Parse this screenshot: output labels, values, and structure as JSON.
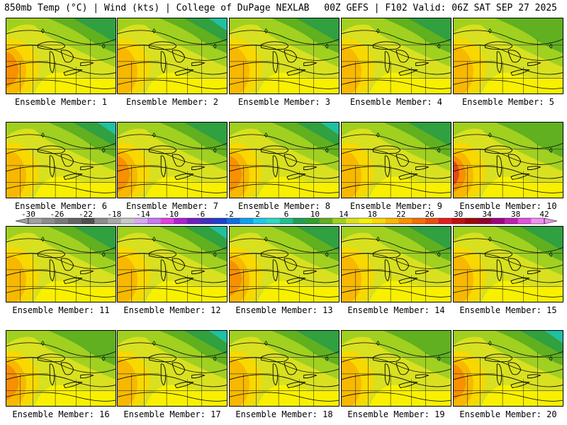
{
  "header": {
    "left": "850mb Temp (°C) | Wind (kts) | College of DuPage NEXLAB",
    "right": "00Z GEFS | F102 Valid: 06Z SAT SEP 27 2025"
  },
  "panels": [
    {
      "label": "Ensemble Member: 1"
    },
    {
      "label": "Ensemble Member: 2"
    },
    {
      "label": "Ensemble Member: 3"
    },
    {
      "label": "Ensemble Member: 4"
    },
    {
      "label": "Ensemble Member: 5"
    },
    {
      "label": "Ensemble Member: 6"
    },
    {
      "label": "Ensemble Member: 7"
    },
    {
      "label": "Ensemble Member: 8"
    },
    {
      "label": "Ensemble Member: 9"
    },
    {
      "label": "Ensemble Member: 10"
    },
    {
      "label": "Ensemble Member: 11"
    },
    {
      "label": "Ensemble Member: 12"
    },
    {
      "label": "Ensemble Member: 13"
    },
    {
      "label": "Ensemble Member: 14"
    },
    {
      "label": "Ensemble Member: 15"
    },
    {
      "label": "Ensemble Member: 16"
    },
    {
      "label": "Ensemble Member: 17"
    },
    {
      "label": "Ensemble Member: 18"
    },
    {
      "label": "Ensemble Member: 19"
    },
    {
      "label": "Ensemble Member: 20"
    }
  ],
  "colorbar": {
    "labels": [
      "-30",
      "-26",
      "-22",
      "-18",
      "-14",
      "-10",
      "-6",
      "-2",
      "2",
      "6",
      "10",
      "14",
      "18",
      "22",
      "26",
      "30",
      "34",
      "38",
      "42"
    ],
    "colors": [
      "#a0a0a0",
      "#8c8c8c",
      "#787878",
      "#646464",
      "#505050",
      "#8c8c8c",
      "#a8a8a8",
      "#c8c8c8",
      "#d8a8f0",
      "#c878f0",
      "#e040e0",
      "#b020d0",
      "#7020c0",
      "#4030c0",
      "#2040d0",
      "#1070e0",
      "#10a0f0",
      "#20c8e8",
      "#30d8c0",
      "#20c090",
      "#20a050",
      "#30a030",
      "#60b020",
      "#a0d020",
      "#d8e020",
      "#f8f000",
      "#f8d800",
      "#f8b800",
      "#f89000",
      "#f07000",
      "#e85010",
      "#e02020",
      "#c01010",
      "#a00808",
      "#900030",
      "#a00080",
      "#c020b0",
      "#e050e0",
      "#f090f0"
    ]
  }
}
